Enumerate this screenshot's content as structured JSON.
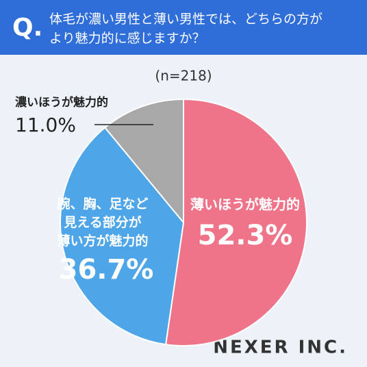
{
  "chart_data": {
    "type": "pie",
    "question_mark": "Q.",
    "title": "体毛が濃い男性と薄い男性では、どちらの方がより魅力的に感じますか？",
    "subtitle": "(n=218)",
    "categories": [
      "薄いほうが魅力的",
      "腕、胸、足など見える部分が薄い方が魅力的",
      "濃いほうが魅力的"
    ],
    "values": [
      52.3,
      36.7,
      11.0
    ],
    "value_labels": [
      "52.3%",
      "36.7%",
      "11.0%"
    ],
    "colors": [
      "#ef7389",
      "#4ea5e8",
      "#a8a8a8"
    ],
    "brand": "NEXER INC."
  }
}
